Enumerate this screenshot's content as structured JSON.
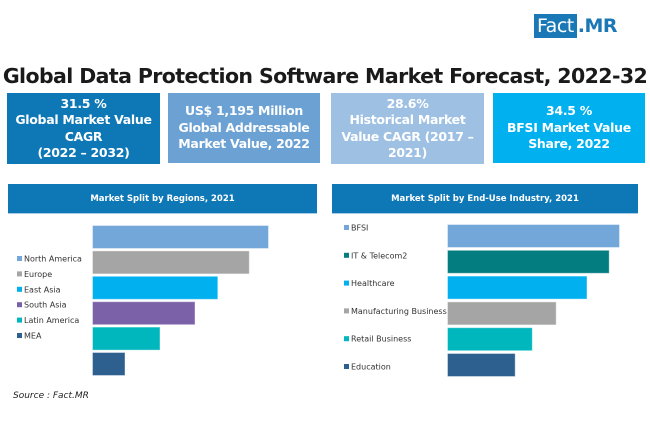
{
  "logo": {
    "part1": "Fact",
    "part2": ".MR"
  },
  "title": "Global Data Protection Software Market Forecast, 2022-32",
  "kpis": [
    {
      "lines": [
        "31.5 %",
        "Global Market Value",
        "CAGR",
        "(2022 – 2032)"
      ],
      "color": "#0e78b7"
    },
    {
      "lines": [
        "US$ 1,195 Million",
        "Global Addressable",
        "Market Value, 2022"
      ],
      "color": "#6ba1d3"
    },
    {
      "lines": [
        "28.6%",
        "Historical Market",
        "Value CAGR (2017 –",
        "2021)"
      ],
      "color": "#9ec0e3"
    },
    {
      "lines": [
        "34.5 %",
        "BFSI Market Value",
        "Share, 2022"
      ],
      "color": "#00b0ef"
    }
  ],
  "source": "Source : Fact.MR",
  "chart_data": [
    {
      "type": "bar",
      "orientation": "horizontal",
      "title": "Market Split by Regions, 2021",
      "xlabel": "",
      "ylabel": "",
      "value_units": "relative (largest = 100), no axis shown",
      "categories": [
        "North America",
        "Europe",
        "East Asia",
        "South Asia",
        "Latin America",
        "MEA"
      ],
      "values": [
        100,
        89,
        71,
        58,
        38,
        18
      ],
      "colors": [
        "#74a7d9",
        "#a5a5a5",
        "#00b0ef",
        "#7b62a8",
        "#00b7be",
        "#2d5f8f"
      ],
      "grid": false,
      "legend": "left"
    },
    {
      "type": "bar",
      "orientation": "horizontal",
      "title": "Market Split by End-Use Industry, 2021",
      "xlabel": "",
      "ylabel": "",
      "value_units": "relative (largest = 100), no axis shown",
      "categories": [
        "BFSI",
        "IT & Telecom2",
        "Healthcare",
        "Manufacturing Business",
        "Retail Business",
        "Education"
      ],
      "values": [
        100,
        94,
        81,
        63,
        49,
        39
      ],
      "colors": [
        "#74a7d9",
        "#047d80",
        "#00b0ef",
        "#a5a5a5",
        "#00b7be",
        "#2d5f8f"
      ],
      "grid": false,
      "legend": "left"
    }
  ]
}
